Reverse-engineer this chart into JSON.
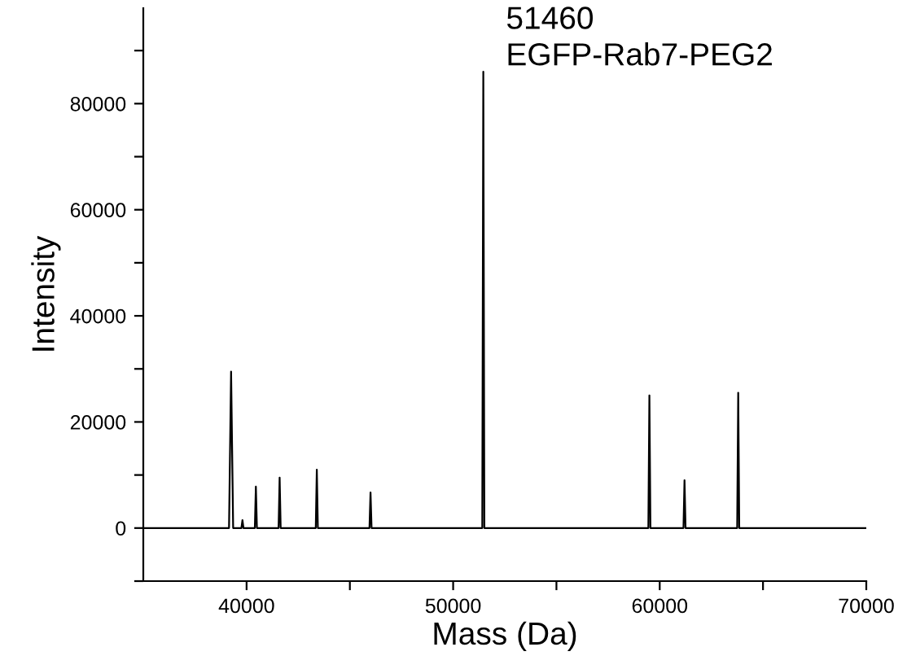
{
  "chart_data": {
    "type": "line",
    "xlabel": "Mass (Da)",
    "ylabel": "Intensity",
    "color": "#000000",
    "grid": false,
    "legend": false,
    "marker": "none",
    "line_style": "solid",
    "x": [
      35000,
      39150,
      39250,
      39350,
      39750,
      39800,
      39850,
      40400,
      40450,
      40500,
      41550,
      41600,
      41650,
      43350,
      43400,
      43450,
      45950,
      46000,
      46050,
      51410,
      51460,
      51510,
      59450,
      59500,
      59550,
      61150,
      61200,
      61250,
      63750,
      63800,
      63850,
      70000
    ],
    "values": [
      0,
      0,
      29500,
      0,
      0,
      1500,
      0,
      0,
      7800,
      0,
      0,
      9500,
      0,
      0,
      11000,
      0,
      0,
      6700,
      0,
      0,
      86000,
      0,
      0,
      25000,
      0,
      0,
      9000,
      0,
      0,
      25500,
      0,
      0
    ],
    "xlim": [
      35000,
      70000
    ],
    "xticks": [
      40000,
      {
        "value": 45000,
        "label": null
      },
      50000,
      {
        "value": 55000,
        "label": null
      },
      60000,
      {
        "value": 65000,
        "label": null
      },
      70000
    ],
    "ylim": [
      -10000,
      98000
    ],
    "yticks": [
      {
        "value": -10000,
        "label": null
      },
      0,
      {
        "value": 10000,
        "label": null
      },
      20000,
      {
        "value": 30000,
        "label": null
      },
      40000,
      {
        "value": 50000,
        "label": null
      },
      60000,
      {
        "value": 70000,
        "label": null
      },
      80000,
      {
        "value": 90000,
        "label": null
      }
    ],
    "annotations": [
      {
        "text": "51460\nEGFP-Rab7-PEG2",
        "x": 51460,
        "y": 86000
      }
    ]
  }
}
